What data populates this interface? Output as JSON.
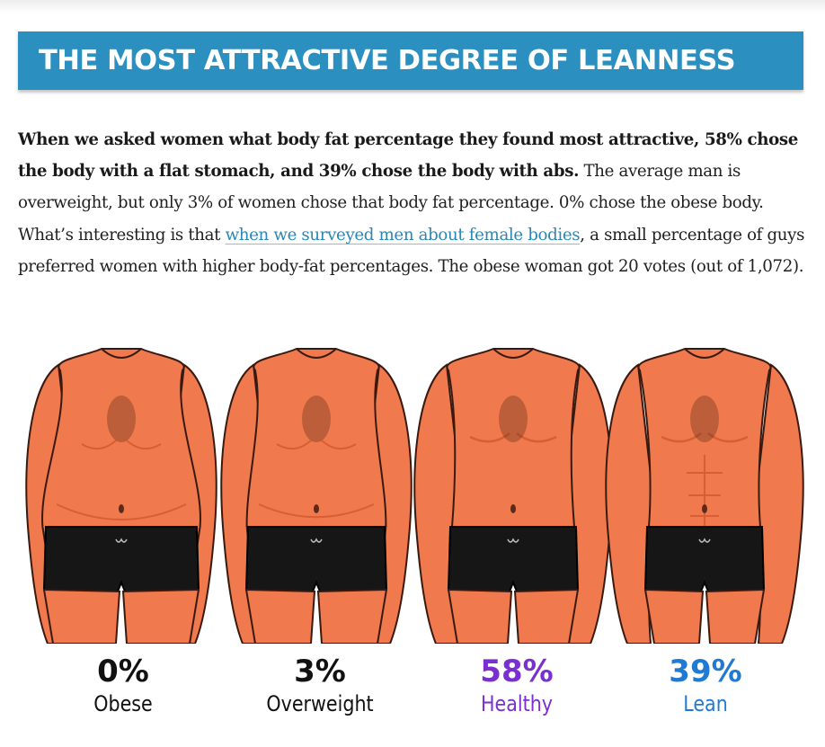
{
  "header": {
    "title": "THE MOST ATTRACTIVE DEGREE OF LEANNESS"
  },
  "paragraph": {
    "bold_text": "When we asked women what body fat percentage they found most attractive, 58% chose the body with a flat stomach, and 39% chose the body with abs.",
    "text_before_link": " The average man is overweight, but only 3% of women chose that body fat percentage. 0% chose the obese body. What’s interesting is that ",
    "link_text": "when we surveyed men about female bodies",
    "text_after_link": ", a small percentage of guys preferred women with higher body-fat percentages. The obese woman got 20 votes (out of 1,072)."
  },
  "figure": {
    "bodies": [
      {
        "percent": "0%",
        "label": "Obese",
        "color": "#111111",
        "type": "obese"
      },
      {
        "percent": "3%",
        "label": "Overweight",
        "color": "#111111",
        "type": "overweight"
      },
      {
        "percent": "58%",
        "label": "Healthy",
        "color": "#7a2fd0",
        "type": "healthy"
      },
      {
        "percent": "39%",
        "label": "Lean",
        "color": "#1f7ad3",
        "type": "lean"
      }
    ],
    "skin_color": "#f07a4d",
    "skin_shadow": "#d85f34",
    "shorts_color": "#161616"
  }
}
